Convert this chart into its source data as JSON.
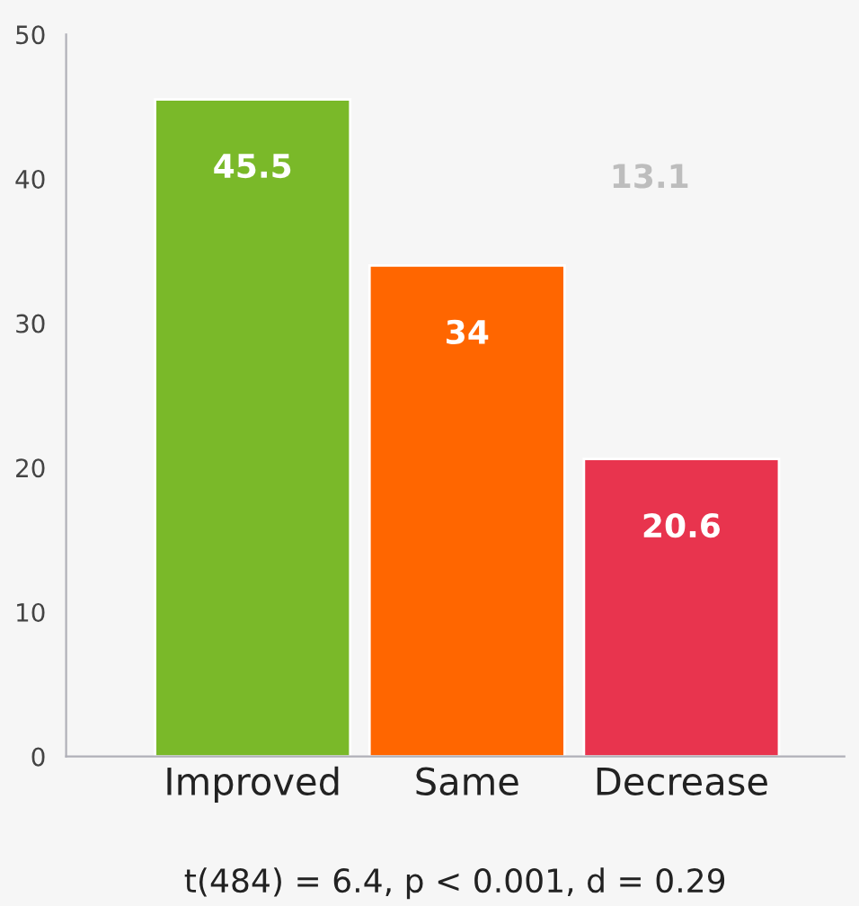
{
  "chart_data": {
    "type": "bar",
    "categories": [
      "Improved",
      "Same",
      "Decrease"
    ],
    "values": [
      45.5,
      34,
      20.6
    ],
    "colors": [
      "#7ab929",
      "#ff6600",
      "#e8344e"
    ],
    "ylim": [
      0,
      50
    ],
    "yticks": [
      0,
      10,
      20,
      30,
      40,
      50
    ],
    "data_labels": true,
    "grid": false,
    "legend": false,
    "annotations": [
      "13.1",
      "t(484) = 6.4, p < 0.001, d = 0.29"
    ]
  }
}
